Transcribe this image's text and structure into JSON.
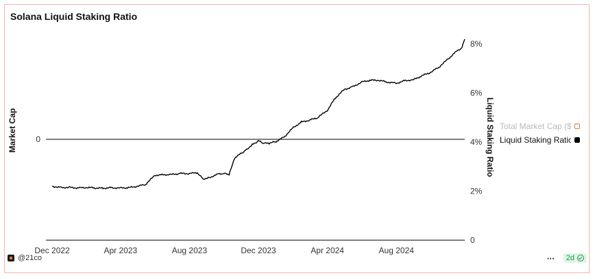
{
  "chart_data": {
    "type": "line",
    "title": "Solana Liquid Staking Ratio",
    "y_left_label": "Market Cap",
    "y_left_ticks": [
      "0"
    ],
    "y_right_label": "Liquid Staking Ratio",
    "y_right_ticks": [
      "0",
      "2%",
      "4%",
      "6%",
      "8%"
    ],
    "y_right_range": [
      0,
      8.2
    ],
    "x_ticks": [
      "Dec 2022",
      "Apr 2023",
      "Aug 2023",
      "Dec 2023",
      "Apr 2024",
      "Aug 2024"
    ],
    "grid": false,
    "legend_position": "right",
    "series": [
      {
        "name": "Total Market Cap ($)",
        "axis": "left",
        "color": "#e07a2e",
        "active": false,
        "values": []
      },
      {
        "name": "Liquid Staking Ratio",
        "axis": "right",
        "color": "#000000",
        "active": true,
        "x": [
          "2022-12-01",
          "2022-12-16",
          "2023-01-01",
          "2023-01-15",
          "2023-02-01",
          "2023-02-15",
          "2023-03-01",
          "2023-03-15",
          "2023-04-01",
          "2023-04-15",
          "2023-05-01",
          "2023-05-15",
          "2023-06-01",
          "2023-06-15",
          "2023-07-01",
          "2023-07-15",
          "2023-08-01",
          "2023-08-15",
          "2023-08-25",
          "2023-09-05",
          "2023-09-20",
          "2023-10-01",
          "2023-10-10",
          "2023-10-20",
          "2023-11-01",
          "2023-11-10",
          "2023-11-20",
          "2023-12-01",
          "2023-12-10",
          "2023-12-20",
          "2024-01-01",
          "2024-01-15",
          "2024-02-01",
          "2024-02-15",
          "2024-03-01",
          "2024-03-15",
          "2024-04-01",
          "2024-04-15",
          "2024-05-01",
          "2024-05-15",
          "2024-06-01",
          "2024-06-15",
          "2024-07-01",
          "2024-07-15",
          "2024-08-01",
          "2024-08-15",
          "2024-09-01",
          "2024-09-15",
          "2024-10-01",
          "2024-10-15",
          "2024-11-01",
          "2024-11-15",
          "2024-11-25",
          "2024-11-30"
        ],
        "values": [
          2.2,
          2.15,
          2.15,
          2.13,
          2.15,
          2.13,
          2.12,
          2.14,
          2.13,
          2.14,
          2.2,
          2.27,
          2.65,
          2.67,
          2.68,
          2.72,
          2.72,
          2.75,
          2.5,
          2.55,
          2.7,
          2.72,
          2.67,
          3.35,
          3.55,
          3.7,
          3.9,
          4.05,
          3.95,
          3.95,
          4.02,
          4.2,
          4.6,
          4.82,
          4.9,
          5.0,
          5.3,
          5.8,
          6.15,
          6.25,
          6.45,
          6.52,
          6.52,
          6.45,
          6.4,
          6.5,
          6.55,
          6.7,
          6.85,
          7.05,
          7.4,
          7.7,
          7.85,
          8.2
        ]
      }
    ]
  },
  "footer": {
    "source": "@21co",
    "more": "⋯",
    "badge": "2d"
  }
}
